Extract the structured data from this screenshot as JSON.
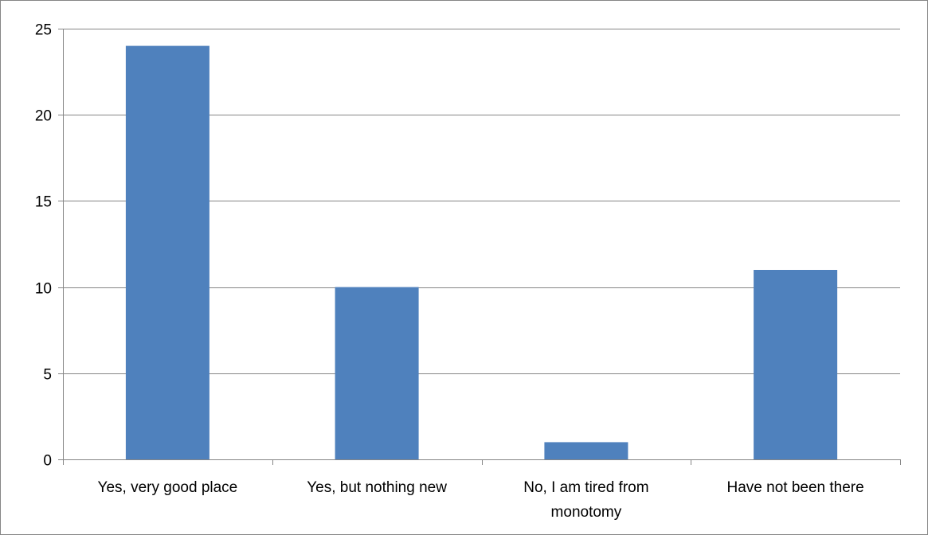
{
  "chart_data": {
    "type": "bar",
    "categories": [
      [
        "Yes, very good place"
      ],
      [
        "Yes, but nothing new"
      ],
      [
        "No, I am tired from",
        "monotomy"
      ],
      [
        "Have not been there"
      ]
    ],
    "values": [
      24,
      10,
      1,
      11
    ],
    "ylim": [
      0,
      25
    ],
    "yticks": [
      0,
      5,
      10,
      15,
      20,
      25
    ],
    "grid": true,
    "legend": "none",
    "colors": {
      "bar": "#4f81bd",
      "grid": "#868686",
      "axis": "#868686"
    }
  }
}
